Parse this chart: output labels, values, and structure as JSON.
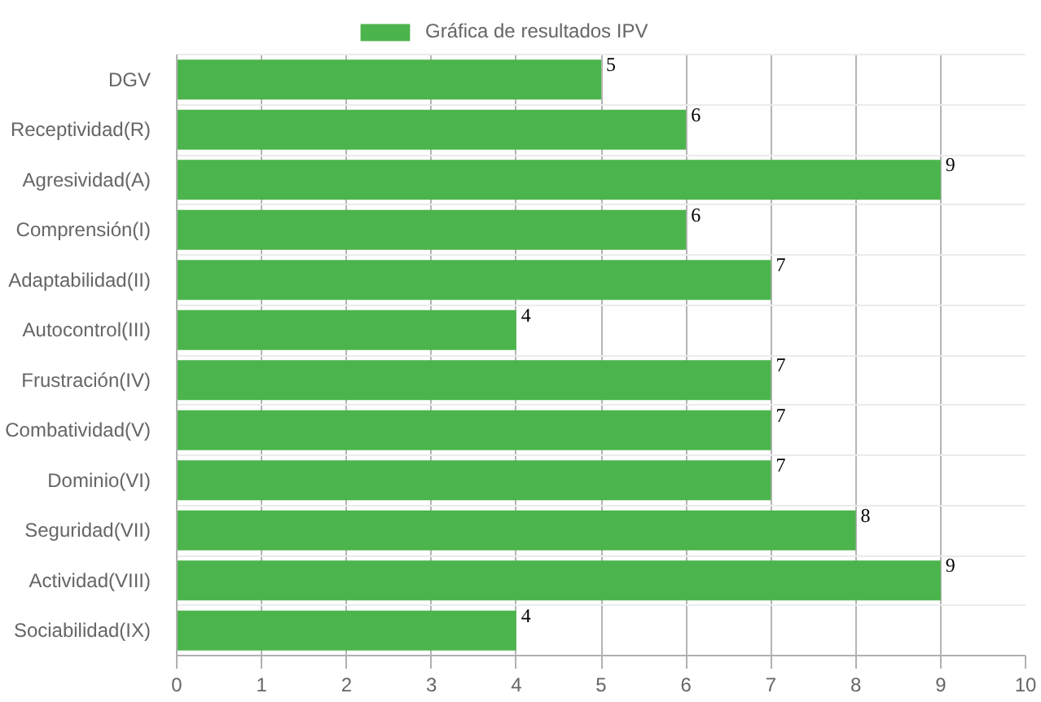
{
  "chart_data": {
    "type": "bar",
    "orientation": "horizontal",
    "categories": [
      "DGV",
      "Receptividad(R)",
      "Agresividad(A)",
      "Comprensión(I)",
      "Adaptabilidad(II)",
      "Autocontrol(III)",
      "Frustración(IV)",
      "Combatividad(V)",
      "Dominio(VI)",
      "Seguridad(VII)",
      "Actividad(VIII)",
      "Sociabilidad(IX)"
    ],
    "series": [
      {
        "name": "Gráfica de resultados IPV",
        "color": "#4cb44c",
        "values": [
          5,
          6,
          9,
          6,
          7,
          4,
          7,
          7,
          7,
          8,
          9,
          4
        ]
      }
    ],
    "xlim": [
      0,
      10
    ],
    "xticks": [
      0,
      1,
      2,
      3,
      4,
      5,
      6,
      7,
      8,
      9,
      10
    ],
    "grid": true,
    "legend": "top",
    "data_labels": true
  }
}
